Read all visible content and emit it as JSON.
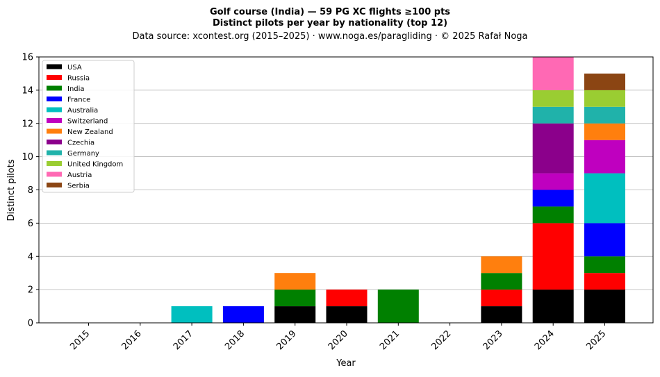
{
  "chart_data": {
    "type": "bar",
    "stacked": true,
    "title": "Golf course (India)  —  59 PG XC flights ≥100 pts",
    "subtitle": "Distinct pilots per year by nationality (top 12)",
    "source_line": "Data source: xcontest.org (2015–2025)  ·  www.noga.es/paragliding  ·  © 2025 Rafał Noga",
    "xlabel": "Year",
    "ylabel": "Distinct pilots",
    "ylim": [
      0,
      16
    ],
    "yticks": [
      0,
      2,
      4,
      6,
      8,
      10,
      12,
      14,
      16
    ],
    "grid": "horizontal",
    "legend_position": "top-left",
    "categories": [
      "2015",
      "2016",
      "2017",
      "2018",
      "2019",
      "2020",
      "2021",
      "2022",
      "2023",
      "2024",
      "2025"
    ],
    "series": [
      {
        "name": "USA",
        "color": "#000000",
        "values": [
          0,
          0,
          0,
          0,
          1,
          1,
          0,
          0,
          1,
          2,
          2
        ]
      },
      {
        "name": "Russia",
        "color": "#ff0000",
        "values": [
          0,
          0,
          0,
          0,
          0,
          1,
          0,
          0,
          1,
          4,
          1
        ]
      },
      {
        "name": "India",
        "color": "#008000",
        "values": [
          0,
          0,
          0,
          0,
          1,
          0,
          2,
          0,
          1,
          1,
          1
        ]
      },
      {
        "name": "France",
        "color": "#0000ff",
        "values": [
          0,
          0,
          0,
          1,
          0,
          0,
          0,
          0,
          0,
          1,
          2
        ]
      },
      {
        "name": "Australia",
        "color": "#00bfbf",
        "values": [
          0,
          0,
          1,
          0,
          0,
          0,
          0,
          0,
          0,
          0,
          3
        ]
      },
      {
        "name": "Switzerland",
        "color": "#bf00bf",
        "values": [
          0,
          0,
          0,
          0,
          0,
          0,
          0,
          0,
          0,
          1,
          2
        ]
      },
      {
        "name": "New Zealand",
        "color": "#ff7f0e",
        "values": [
          0,
          0,
          0,
          0,
          1,
          0,
          0,
          0,
          1,
          0,
          1
        ]
      },
      {
        "name": "Czechia",
        "color": "#8b008b",
        "values": [
          0,
          0,
          0,
          0,
          0,
          0,
          0,
          0,
          0,
          3,
          0
        ]
      },
      {
        "name": "Germany",
        "color": "#20b2aa",
        "values": [
          0,
          0,
          0,
          0,
          0,
          0,
          0,
          0,
          0,
          1,
          1
        ]
      },
      {
        "name": "United Kingdom",
        "color": "#9acd32",
        "values": [
          0,
          0,
          0,
          0,
          0,
          0,
          0,
          0,
          0,
          1,
          1
        ]
      },
      {
        "name": "Austria",
        "color": "#ff69b4",
        "values": [
          0,
          0,
          0,
          0,
          0,
          0,
          0,
          0,
          0,
          2,
          0
        ]
      },
      {
        "name": "Serbia",
        "color": "#8b4513",
        "values": [
          0,
          0,
          0,
          0,
          0,
          0,
          0,
          0,
          0,
          0,
          1
        ]
      }
    ]
  }
}
